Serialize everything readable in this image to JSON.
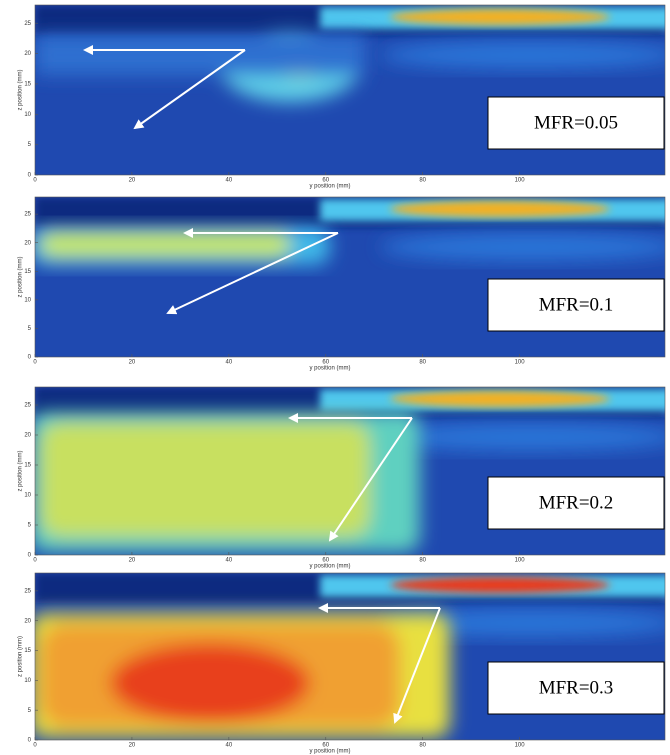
{
  "chart_data": [
    {
      "type": "image",
      "annotation": "MFR=0.05",
      "xlabel": "y position (mm)",
      "ylabel": "z position (mm)",
      "xlim": [
        0,
        130
      ],
      "xticks": [
        0,
        20,
        40,
        60,
        80,
        100
      ],
      "ylim": [
        0,
        28
      ],
      "yticks": [
        0,
        5,
        10,
        15,
        20,
        25
      ]
    },
    {
      "type": "image",
      "annotation": "MFR=0.1",
      "xlabel": "y position (mm)",
      "ylabel": "z position (mm)",
      "xlim": [
        0,
        130
      ],
      "xticks": [
        0,
        20,
        40,
        60,
        80,
        100
      ],
      "ylim": [
        0,
        28
      ],
      "yticks": [
        0,
        5,
        10,
        15,
        20,
        25
      ]
    },
    {
      "type": "image",
      "annotation": "MFR=0.2",
      "xlabel": "y position (mm)",
      "ylabel": "z position (mm)",
      "xlim": [
        0,
        130
      ],
      "xticks": [
        0,
        20,
        40,
        60,
        80,
        100
      ],
      "ylim": [
        0,
        28
      ],
      "yticks": [
        0,
        5,
        10,
        15,
        20,
        25
      ]
    },
    {
      "type": "image",
      "annotation": "MFR=0.3",
      "xlabel": "y position (mm)",
      "ylabel": "z position (mm)",
      "xlim": [
        0,
        130
      ],
      "xticks": [
        0,
        20,
        40,
        60,
        80,
        100
      ],
      "ylim": [
        0,
        28
      ],
      "yticks": [
        0,
        5,
        10,
        15,
        20,
        25
      ]
    }
  ]
}
